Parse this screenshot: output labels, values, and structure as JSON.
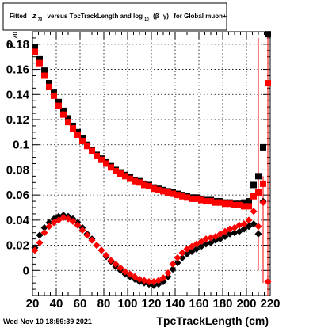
{
  "header": {
    "title_parts": [
      "Fitted",
      "z",
      "70",
      "versus TpcTrackLength and log",
      "10",
      "(β",
      "γ)",
      "for Global muon+"
    ]
  },
  "footer": {
    "timestamp": "Wed Nov 10 18:59:39 2021"
  },
  "chart_data": {
    "type": "scatter",
    "title": "Fitted z70 versus TpcTrackLength and log10(β γ) for Global muon+",
    "xlabel": "TpcTrackLength (cm)",
    "ylabel_parts": [
      "z",
      "70"
    ],
    "xlim": [
      20,
      220
    ],
    "ylim": [
      -0.02,
      0.19
    ],
    "xticks": [
      20,
      40,
      60,
      80,
      100,
      120,
      140,
      160,
      180,
      200,
      220
    ],
    "yticks": [
      0,
      0.02,
      0.04,
      0.06,
      0.08,
      0.1,
      0.12,
      0.14,
      0.16,
      0.18
    ],
    "ytick_labels": [
      "0",
      "0.02",
      "0.04",
      "0.06",
      "0.08",
      "0.1",
      "0.12",
      "0.14",
      "0.16",
      "0.18"
    ],
    "grid": true,
    "series": [
      {
        "color": "#000000",
        "marker": "square",
        "x": [
          22,
          26,
          30,
          34,
          38,
          42,
          46,
          50,
          54,
          58,
          62,
          66,
          70,
          74,
          78,
          82,
          86,
          90,
          94,
          98,
          102,
          106,
          110,
          114,
          118,
          122,
          126,
          130,
          134,
          138,
          142,
          146,
          150,
          154,
          158,
          162,
          166,
          170,
          174,
          178,
          182,
          186,
          190,
          194,
          198,
          202,
          206,
          210,
          214,
          218
        ],
        "y": [
          0.178,
          0.168,
          0.159,
          0.149,
          0.142,
          0.134,
          0.127,
          0.121,
          0.115,
          0.11,
          0.105,
          0.1,
          0.096,
          0.092,
          0.089,
          0.086,
          0.083,
          0.08,
          0.078,
          0.076,
          0.074,
          0.072,
          0.071,
          0.069,
          0.068,
          0.066,
          0.065,
          0.064,
          0.063,
          0.062,
          0.061,
          0.06,
          0.059,
          0.058,
          0.058,
          0.057,
          0.056,
          0.056,
          0.055,
          0.055,
          0.054,
          0.054,
          0.053,
          0.053,
          0.054,
          0.055,
          0.068,
          0.075,
          0.098,
          0.188
        ]
      },
      {
        "color": "#ff0000",
        "marker": "square",
        "x": [
          22,
          26,
          30,
          34,
          38,
          42,
          46,
          50,
          54,
          58,
          62,
          66,
          70,
          74,
          78,
          82,
          86,
          90,
          94,
          98,
          102,
          106,
          110,
          114,
          118,
          122,
          126,
          130,
          134,
          138,
          142,
          146,
          150,
          154,
          158,
          162,
          166,
          170,
          174,
          178,
          182,
          186,
          190,
          194,
          198,
          202,
          206,
          210,
          214,
          218
        ],
        "y": [
          0.174,
          0.165,
          0.155,
          0.146,
          0.139,
          0.131,
          0.124,
          0.118,
          0.113,
          0.108,
          0.103,
          0.099,
          0.095,
          0.091,
          0.088,
          0.085,
          0.082,
          0.079,
          0.077,
          0.075,
          0.073,
          0.071,
          0.07,
          0.068,
          0.067,
          0.065,
          0.064,
          0.063,
          0.062,
          0.061,
          0.06,
          0.059,
          0.058,
          0.057,
          0.057,
          0.056,
          0.055,
          0.055,
          0.054,
          0.054,
          0.053,
          0.053,
          0.052,
          0.052,
          0.051,
          0.051,
          0.059,
          0.062,
          0.069,
          0.149
        ]
      },
      {
        "color": "#000000",
        "marker": "diamond",
        "x": [
          22,
          26,
          30,
          34,
          38,
          42,
          46,
          50,
          54,
          58,
          62,
          66,
          70,
          74,
          78,
          82,
          86,
          90,
          94,
          98,
          102,
          106,
          110,
          114,
          118,
          122,
          126,
          130,
          134,
          138,
          142,
          146,
          150,
          154,
          158,
          162,
          166,
          170,
          174,
          178,
          182,
          186,
          190,
          194,
          198,
          202,
          206,
          210,
          214
        ],
        "y": [
          0.018,
          0.028,
          0.034,
          0.038,
          0.041,
          0.043,
          0.044,
          0.043,
          0.041,
          0.038,
          0.034,
          0.029,
          0.025,
          0.02,
          0.016,
          0.011,
          0.007,
          0.003,
          0.0,
          -0.003,
          -0.005,
          -0.007,
          -0.009,
          -0.01,
          -0.011,
          -0.012,
          -0.011,
          -0.009,
          -0.005,
          0.001,
          0.006,
          0.01,
          0.013,
          0.015,
          0.017,
          0.019,
          0.021,
          0.022,
          0.024,
          0.025,
          0.027,
          0.029,
          0.03,
          0.031,
          0.033,
          0.035,
          0.037,
          0.029,
          0.055
        ]
      },
      {
        "color": "#ff0000",
        "marker": "diamond",
        "x": [
          22,
          26,
          30,
          34,
          38,
          42,
          46,
          50,
          54,
          58,
          62,
          66,
          70,
          74,
          78,
          82,
          86,
          90,
          94,
          98,
          102,
          106,
          110,
          114,
          118,
          122,
          126,
          130,
          134,
          138,
          142,
          146,
          150,
          154,
          158,
          162,
          166,
          170,
          174,
          178,
          182,
          186,
          190,
          194,
          198,
          202,
          206,
          210,
          214,
          218
        ],
        "y": [
          0.016,
          0.022,
          0.03,
          0.035,
          0.038,
          0.04,
          0.042,
          0.041,
          0.039,
          0.036,
          0.032,
          0.028,
          0.024,
          0.02,
          0.016,
          0.012,
          0.008,
          0.005,
          0.002,
          -0.001,
          -0.003,
          -0.005,
          -0.007,
          -0.008,
          -0.009,
          -0.009,
          -0.008,
          -0.006,
          -0.002,
          0.005,
          0.01,
          0.014,
          0.017,
          0.019,
          0.021,
          0.023,
          0.025,
          0.026,
          0.027,
          0.029,
          0.031,
          0.033,
          0.034,
          0.036,
          0.037,
          0.04,
          0.047,
          0.035,
          0.054,
          -0.009
        ]
      }
    ],
    "error_bars": [
      {
        "x": 210,
        "y": 0.062,
        "low": 0.0,
        "high": 0.185,
        "color": "#ff0000"
      },
      {
        "x": 218,
        "y": 0.149,
        "low": 0.0,
        "high": 0.19,
        "color": "#ff0000"
      },
      {
        "x": 218,
        "y": 0.188,
        "low": -0.02,
        "high": 0.19,
        "color": "#ff0000"
      },
      {
        "x": 214,
        "y": 0.054,
        "low": -0.01,
        "high": 0.075,
        "color": "#ff0000"
      },
      {
        "x": 218,
        "y": -0.009,
        "low": -0.02,
        "high": 0.06,
        "color": "#ff0000"
      },
      {
        "x": 210,
        "y": 0.035,
        "low": 0.014,
        "high": 0.05,
        "color": "#ff0000"
      }
    ]
  }
}
